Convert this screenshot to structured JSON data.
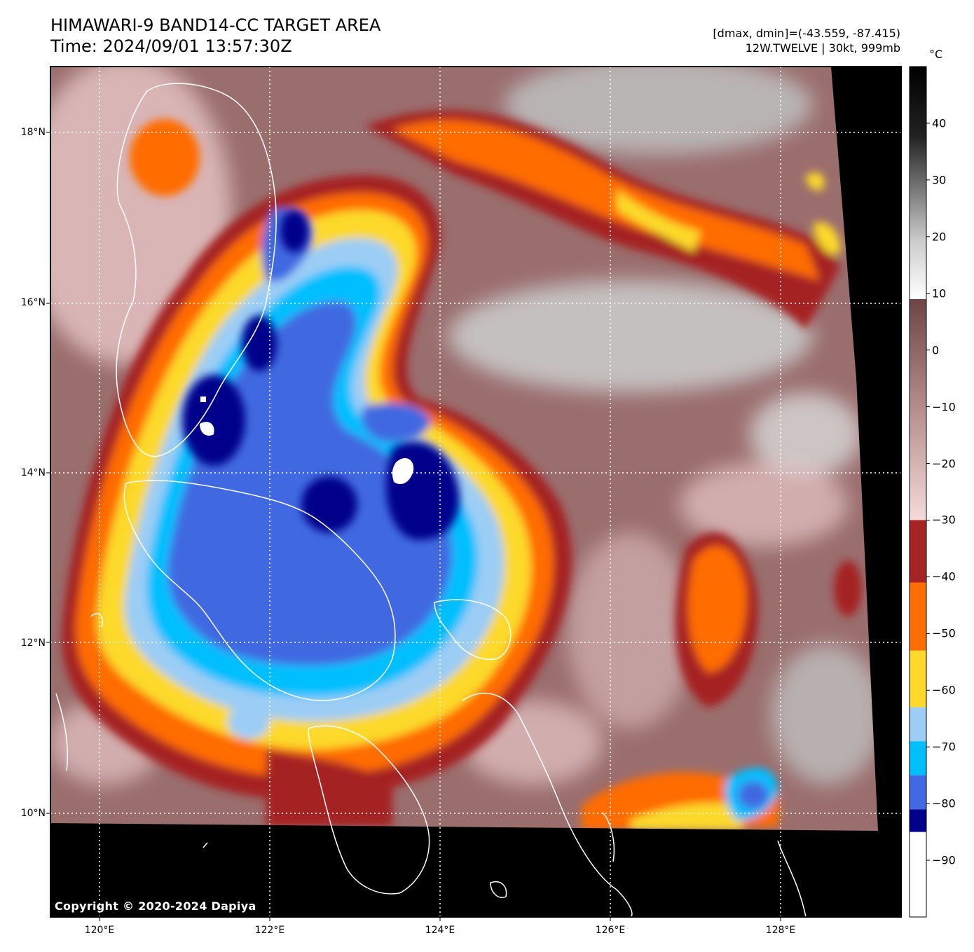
{
  "header": {
    "title_line1": "HIMAWARI-9 BAND14-CC TARGET AREA",
    "title_line2": "Time: 2024/09/01 13:57:30Z",
    "info_line1": "[dmax, dmin]=(-43.559, -87.415)",
    "info_line2": "12W.TWELVE | 30kt, 999mb"
  },
  "colorbar": {
    "unit": "°C",
    "ticks": [
      {
        "label": "40",
        "value": 40
      },
      {
        "label": "30",
        "value": 30
      },
      {
        "label": "20",
        "value": 20
      },
      {
        "label": "10",
        "value": 10
      },
      {
        "label": "0",
        "value": 0
      },
      {
        "label": "−10",
        "value": -10
      },
      {
        "label": "−20",
        "value": -20
      },
      {
        "label": "−30",
        "value": -30
      },
      {
        "label": "−40",
        "value": -40
      },
      {
        "label": "−50",
        "value": -50
      },
      {
        "label": "−60",
        "value": -60
      },
      {
        "label": "−70",
        "value": -70
      },
      {
        "label": "−80",
        "value": -80
      },
      {
        "label": "−90",
        "value": -90
      }
    ],
    "bands": [
      {
        "from": -100,
        "to": -85,
        "color": "#ffffff"
      },
      {
        "from": -85,
        "to": -81,
        "color": "#00008b"
      },
      {
        "from": -81,
        "to": -75,
        "color": "#4169e1"
      },
      {
        "from": -75,
        "to": -69,
        "color": "#00bfff"
      },
      {
        "from": -69,
        "to": -63,
        "color": "#9ccdf5"
      },
      {
        "from": -63,
        "to": -53,
        "color": "#fcd92a"
      },
      {
        "from": -53,
        "to": -41,
        "color": "#ff6c00"
      },
      {
        "from": -41,
        "to": -30,
        "color": "#a52424"
      }
    ]
  },
  "map": {
    "lat_labels": [
      {
        "label": "18°N",
        "value": 18
      },
      {
        "label": "16°N",
        "value": 16
      },
      {
        "label": "14°N",
        "value": 14
      },
      {
        "label": "12°N",
        "value": 12
      },
      {
        "label": "10°N",
        "value": 10
      }
    ],
    "lon_labels": [
      {
        "label": "120°E",
        "value": 120
      },
      {
        "label": "122°E",
        "value": 122
      },
      {
        "label": "124°E",
        "value": 124
      },
      {
        "label": "126°E",
        "value": 126
      },
      {
        "label": "128°E",
        "value": 128
      }
    ],
    "copyright": "Copyright © 2020-2024 Dapiya"
  },
  "colors": {
    "cold_warm_base": "#9b6e6e",
    "pink_shade": "#f2d6d6",
    "land_outline": "#ffffff",
    "no_data": "#000000"
  }
}
